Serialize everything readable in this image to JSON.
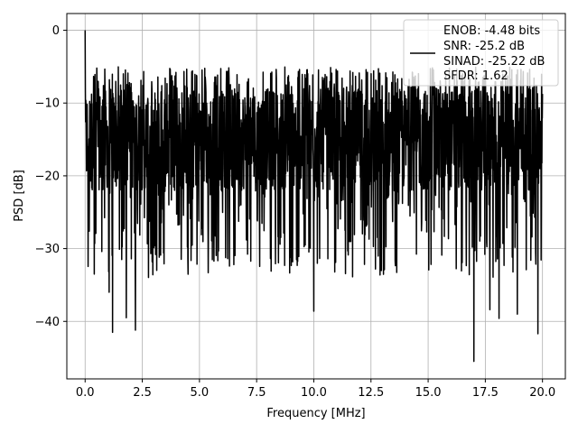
{
  "chart_data": {
    "type": "line",
    "xlabel": "Frequency [MHz]",
    "ylabel": "PSD [dB]",
    "xlim": [
      -0.8,
      21.0
    ],
    "ylim": [
      -47.9,
      2.3
    ],
    "xticks": [
      0.0,
      2.5,
      5.0,
      7.5,
      10.0,
      12.5,
      15.0,
      17.5,
      20.0
    ],
    "xtick_labels": [
      "0.0",
      "2.5",
      "5.0",
      "7.5",
      "10.0",
      "12.5",
      "15.0",
      "17.5",
      "20.0"
    ],
    "yticks": [
      0,
      -10,
      -20,
      -30,
      -40
    ],
    "ytick_labels": [
      "0",
      "−10",
      "−20",
      "−30",
      "−40"
    ],
    "grid": true,
    "legend_position": "top-right",
    "series_color": "#000000",
    "legend": {
      "line_1": "ENOB: -4.48 bits",
      "line_2": "SNR: -25.2 dB",
      "line_3": "SINAD: -25.22 dB",
      "line_4": "SFDR: 1.62"
    },
    "series": [
      {
        "x_start": 0.0,
        "x_end": 20.0,
        "points": 2000,
        "typical_range": [
          -22,
          -8
        ],
        "upper_envelope": -5,
        "notable_points": [
          {
            "x": 0.0,
            "y": 0.0
          },
          {
            "x": 0.05,
            "y": -14
          },
          {
            "x": 0.4,
            "y": -33.5
          },
          {
            "x": 1.05,
            "y": -36
          },
          {
            "x": 1.2,
            "y": -41.5
          },
          {
            "x": 1.8,
            "y": -39.5
          },
          {
            "x": 2.2,
            "y": -41.2
          },
          {
            "x": 10.0,
            "y": -38.6
          },
          {
            "x": 17.0,
            "y": -45.5
          },
          {
            "x": 17.7,
            "y": -38.4
          },
          {
            "x": 18.1,
            "y": -39.6
          },
          {
            "x": 18.9,
            "y": -39.0
          },
          {
            "x": 19.8,
            "y": -41.7
          }
        ]
      }
    ]
  }
}
